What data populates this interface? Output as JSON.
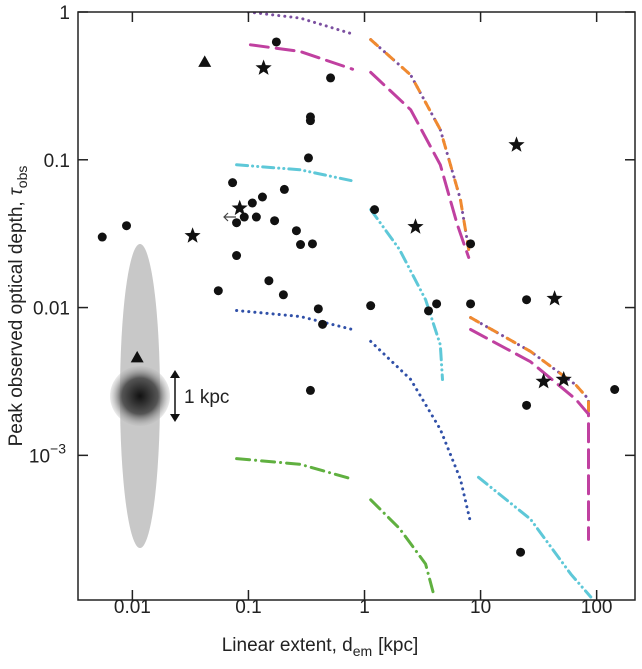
{
  "chart_data": {
    "type": "scatter",
    "xlabel": {
      "text": "Linear extent, d",
      "sub": "em",
      "tail": "[kpc]"
    },
    "ylabel": {
      "text": "Peak observed optical depth,",
      "symbol": "τ",
      "sub": "obs"
    },
    "annotation": "1 kpc",
    "xscale": "log",
    "yscale": "log",
    "xlim": [
      0.0034,
      214
    ],
    "ylim": [
      0.000105,
      1
    ],
    "xticks": [
      0.01,
      0.1,
      1,
      10,
      100
    ],
    "yticks": [
      1,
      0.1,
      0.01,
      {
        "value": 0.001,
        "label": "10",
        "sup": "−3"
      }
    ],
    "series": [
      {
        "type": "scatter",
        "marker": "circle",
        "color": "#111111",
        "x": [
          0.0055,
          0.0089,
          0.055,
          0.073,
          0.079,
          0.079,
          0.092,
          0.108,
          0.132,
          0.117,
          0.168,
          0.204,
          0.15,
          0.2,
          0.259,
          0.281,
          0.174,
          0.51,
          0.342,
          0.342,
          0.329,
          0.356,
          0.4,
          0.435,
          0.342,
          1.13,
          1.22,
          3.56,
          4.18,
          8.2,
          8.2,
          24.9,
          24.9,
          22.1,
          143
        ],
        "y": [
          0.03,
          0.0358,
          0.013,
          0.07,
          0.0375,
          0.0225,
          0.041,
          0.051,
          0.056,
          0.041,
          0.0387,
          0.063,
          0.0152,
          0.0122,
          0.0331,
          0.0267,
          0.627,
          0.358,
          0.195,
          0.184,
          0.103,
          0.027,
          0.0098,
          0.0077,
          0.00275,
          0.0103,
          0.046,
          0.0095,
          0.0106,
          0.027,
          0.0106,
          0.0113,
          0.00218,
          0.000221,
          0.00279
        ]
      },
      {
        "type": "scatter",
        "marker": "star",
        "color": "#111111",
        "x": [
          0.135,
          0.033,
          0.084,
          20.4,
          2.75,
          43.4,
          52,
          34.9
        ],
        "y": [
          0.418,
          0.0306,
          0.047,
          0.126,
          0.0352,
          0.0115,
          0.00326,
          0.00316
        ]
      },
      {
        "type": "scatter",
        "marker": "triangle",
        "color": "#111111",
        "x": [
          0.042,
          0.011
        ],
        "y": [
          0.46,
          0.0046
        ]
      },
      {
        "type": "line",
        "color": "#7b4fa0",
        "style": "dotted",
        "x": [
          0.1,
          0.28,
          0.79
        ],
        "y": [
          1,
          0.91,
          0.71
        ]
      },
      {
        "type": "line",
        "color": "#7b4fa0",
        "style": "dotted",
        "x": [
          1.13,
          2.5,
          4.5,
          6.7,
          7.9
        ],
        "y": [
          0.65,
          0.375,
          0.16,
          0.054,
          0.0247
        ]
      },
      {
        "type": "line",
        "color": "#f08a30",
        "style": "dashed",
        "x": [
          1.13,
          2.5,
          4.5,
          6.7,
          7.9
        ],
        "y": [
          0.65,
          0.375,
          0.16,
          0.054,
          0.0247
        ]
      },
      {
        "type": "line",
        "color": "#7b4fa0",
        "style": "dotted",
        "x": [
          8.2,
          26.9,
          66,
          85,
          85
        ],
        "y": [
          0.00855,
          0.00505,
          0.003,
          0.0024,
          0.00175
        ]
      },
      {
        "type": "line",
        "color": "#f08a30",
        "style": "dashed",
        "x": [
          8.2,
          26.9,
          66,
          85,
          85
        ],
        "y": [
          0.00855,
          0.00505,
          0.003,
          0.0024,
          0.00175
        ]
      },
      {
        "type": "line",
        "color": "#c040a0",
        "style": "longdash",
        "x": [
          0.104,
          0.28,
          0.79
        ],
        "y": [
          0.6,
          0.54,
          0.41
        ]
      },
      {
        "type": "line",
        "color": "#c040a0",
        "style": "longdash",
        "x": [
          1.13,
          2.5,
          4.5,
          6.3,
          7.9
        ],
        "y": [
          0.39,
          0.218,
          0.0925,
          0.0364,
          0.0218
        ]
      },
      {
        "type": "line",
        "color": "#c040a0",
        "style": "longdash",
        "x": [
          8.2,
          26.9,
          66,
          85,
          85
        ],
        "y": [
          0.0071,
          0.0043,
          0.0024,
          0.0019,
          0.00027
        ]
      },
      {
        "type": "line",
        "color": "#5ec8d8",
        "style": "dashdotdot",
        "x": [
          0.079,
          0.28,
          0.79
        ],
        "y": [
          0.0925,
          0.0856,
          0.072
        ]
      },
      {
        "type": "line",
        "color": "#5ec8d8",
        "style": "dashdotdot",
        "x": [
          1.13,
          2.0,
          3.36,
          4.5,
          4.7
        ],
        "y": [
          0.046,
          0.0247,
          0.0113,
          0.0056,
          0.00326
        ]
      },
      {
        "type": "line",
        "color": "#5ec8d8",
        "style": "dashdotdot",
        "x": [
          9.6,
          26.9,
          60,
          89
        ],
        "y": [
          0.00071,
          0.00037,
          0.000157,
          0.00011
        ]
      },
      {
        "type": "line",
        "color": "#3050a8",
        "style": "dotted",
        "x": [
          0.079,
          0.28,
          0.79
        ],
        "y": [
          0.00955,
          0.0087,
          0.0071
        ]
      },
      {
        "type": "line",
        "color": "#3050a8",
        "style": "dotted",
        "x": [
          1.13,
          2.5,
          4.5,
          6.7,
          8.2
        ],
        "y": [
          0.0059,
          0.00326,
          0.0015,
          0.00069,
          0.00035
        ]
      },
      {
        "type": "line",
        "color": "#60b040",
        "style": "dashdot",
        "x": [
          0.079,
          0.28,
          0.79
        ],
        "y": [
          0.00095,
          0.00087,
          0.00069
        ]
      },
      {
        "type": "line",
        "color": "#60b040",
        "style": "dashdot",
        "x": [
          1.13,
          2.0,
          3.36,
          4.0
        ],
        "y": [
          0.0005,
          0.00032,
          0.000184,
          0.00011
        ]
      }
    ]
  }
}
